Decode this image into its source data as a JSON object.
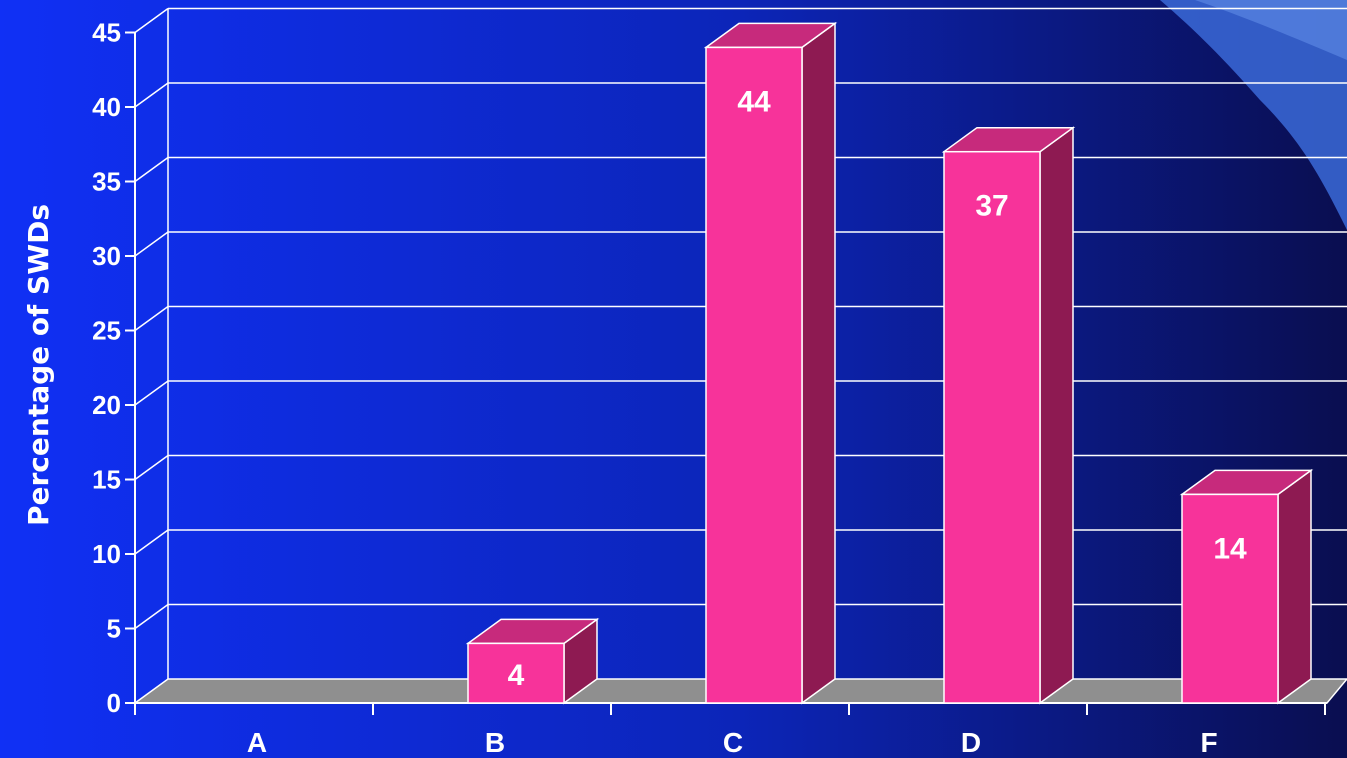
{
  "chart_data": {
    "type": "bar",
    "categories": [
      "A",
      "B",
      "C",
      "D",
      "F"
    ],
    "values": [
      0,
      4,
      44,
      37,
      14
    ],
    "data_labels": [
      "",
      "4",
      "44",
      "37",
      "14"
    ],
    "title": "",
    "xlabel": "",
    "ylabel": "Percentage of SWDs",
    "ylim": [
      0,
      45
    ],
    "yticks": [
      0,
      5,
      10,
      15,
      20,
      25,
      30,
      35,
      40,
      45
    ],
    "grid": true,
    "style": "3d-column",
    "legend": "none"
  },
  "colors": {
    "bar_front": "#f7339a",
    "bar_top": "#c72a7c",
    "bar_side": "#8e1a52",
    "floor": "#8f8f8f",
    "background_start": "#1030f5",
    "background_end": "#0a0e50",
    "text": "#ffffff"
  }
}
